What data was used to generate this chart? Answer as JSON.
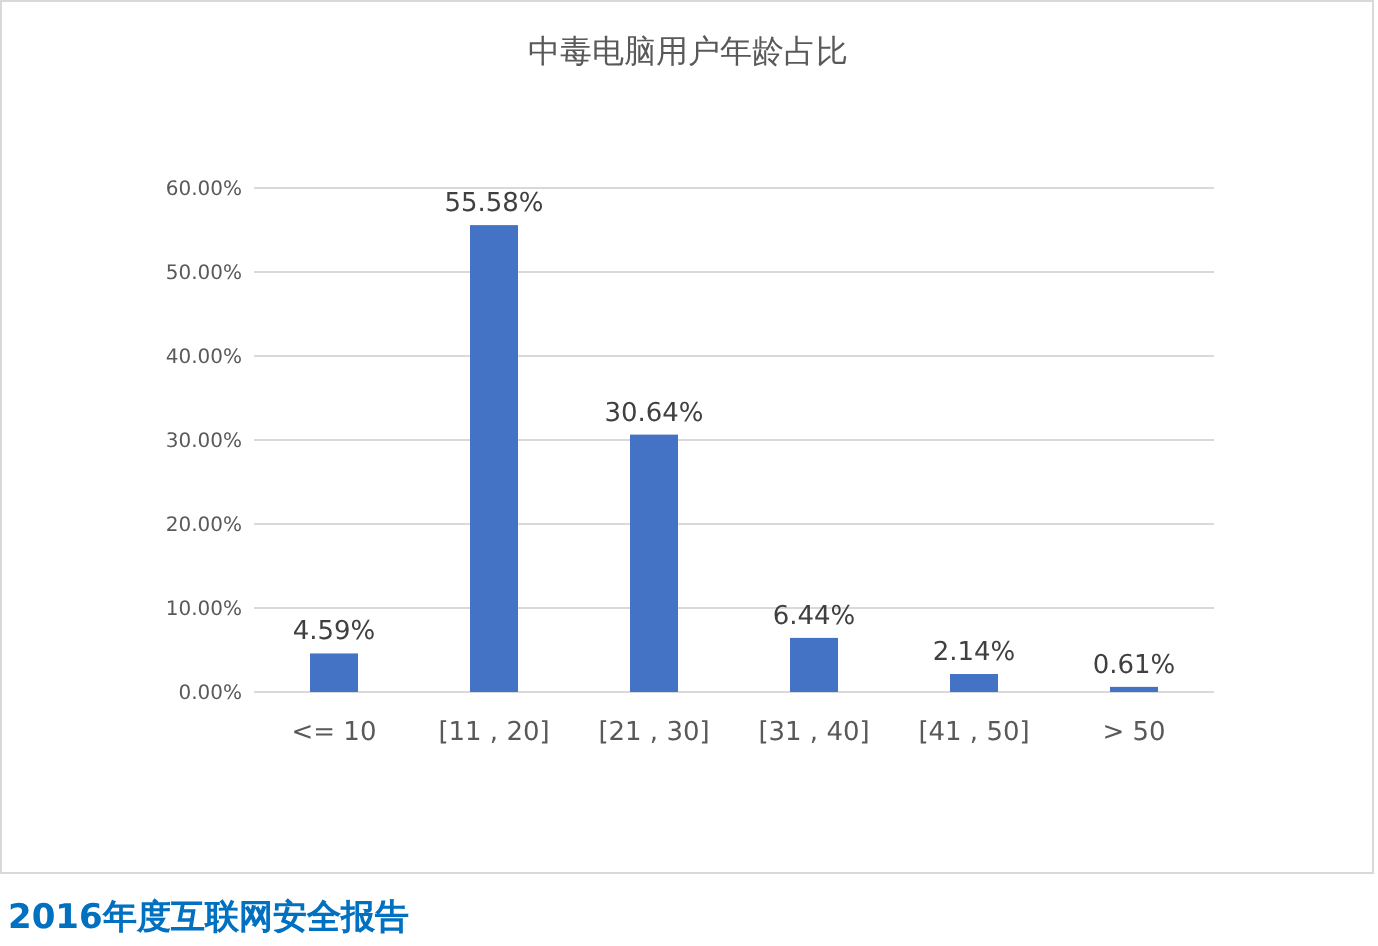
{
  "chart_data": {
    "type": "bar",
    "title": "中毒电脑用户年龄占比",
    "categories": [
      "<= 10",
      "[11 , 20]",
      "[21 , 30]",
      "[31 , 40]",
      "[41 , 50]",
      "> 50"
    ],
    "values": [
      4.59,
      55.58,
      30.64,
      6.44,
      2.14,
      0.61
    ],
    "value_labels": [
      "4.59%",
      "55.58%",
      "30.64%",
      "6.44%",
      "2.14%",
      "0.61%"
    ],
    "color": "#4472c4",
    "ylim": [
      0,
      60
    ],
    "yticks": [
      {
        "value": 0,
        "label": "0.00%"
      },
      {
        "value": 10,
        "label": "10.00%"
      },
      {
        "value": 20,
        "label": "20.00%"
      },
      {
        "value": 30,
        "label": "30.00%"
      },
      {
        "value": 40,
        "label": "40.00%"
      },
      {
        "value": 50,
        "label": "50.00%"
      },
      {
        "value": 60,
        "label": "60.00%"
      }
    ],
    "grid": "y",
    "annotations": [
      "2016年度互联网安全报告"
    ]
  }
}
